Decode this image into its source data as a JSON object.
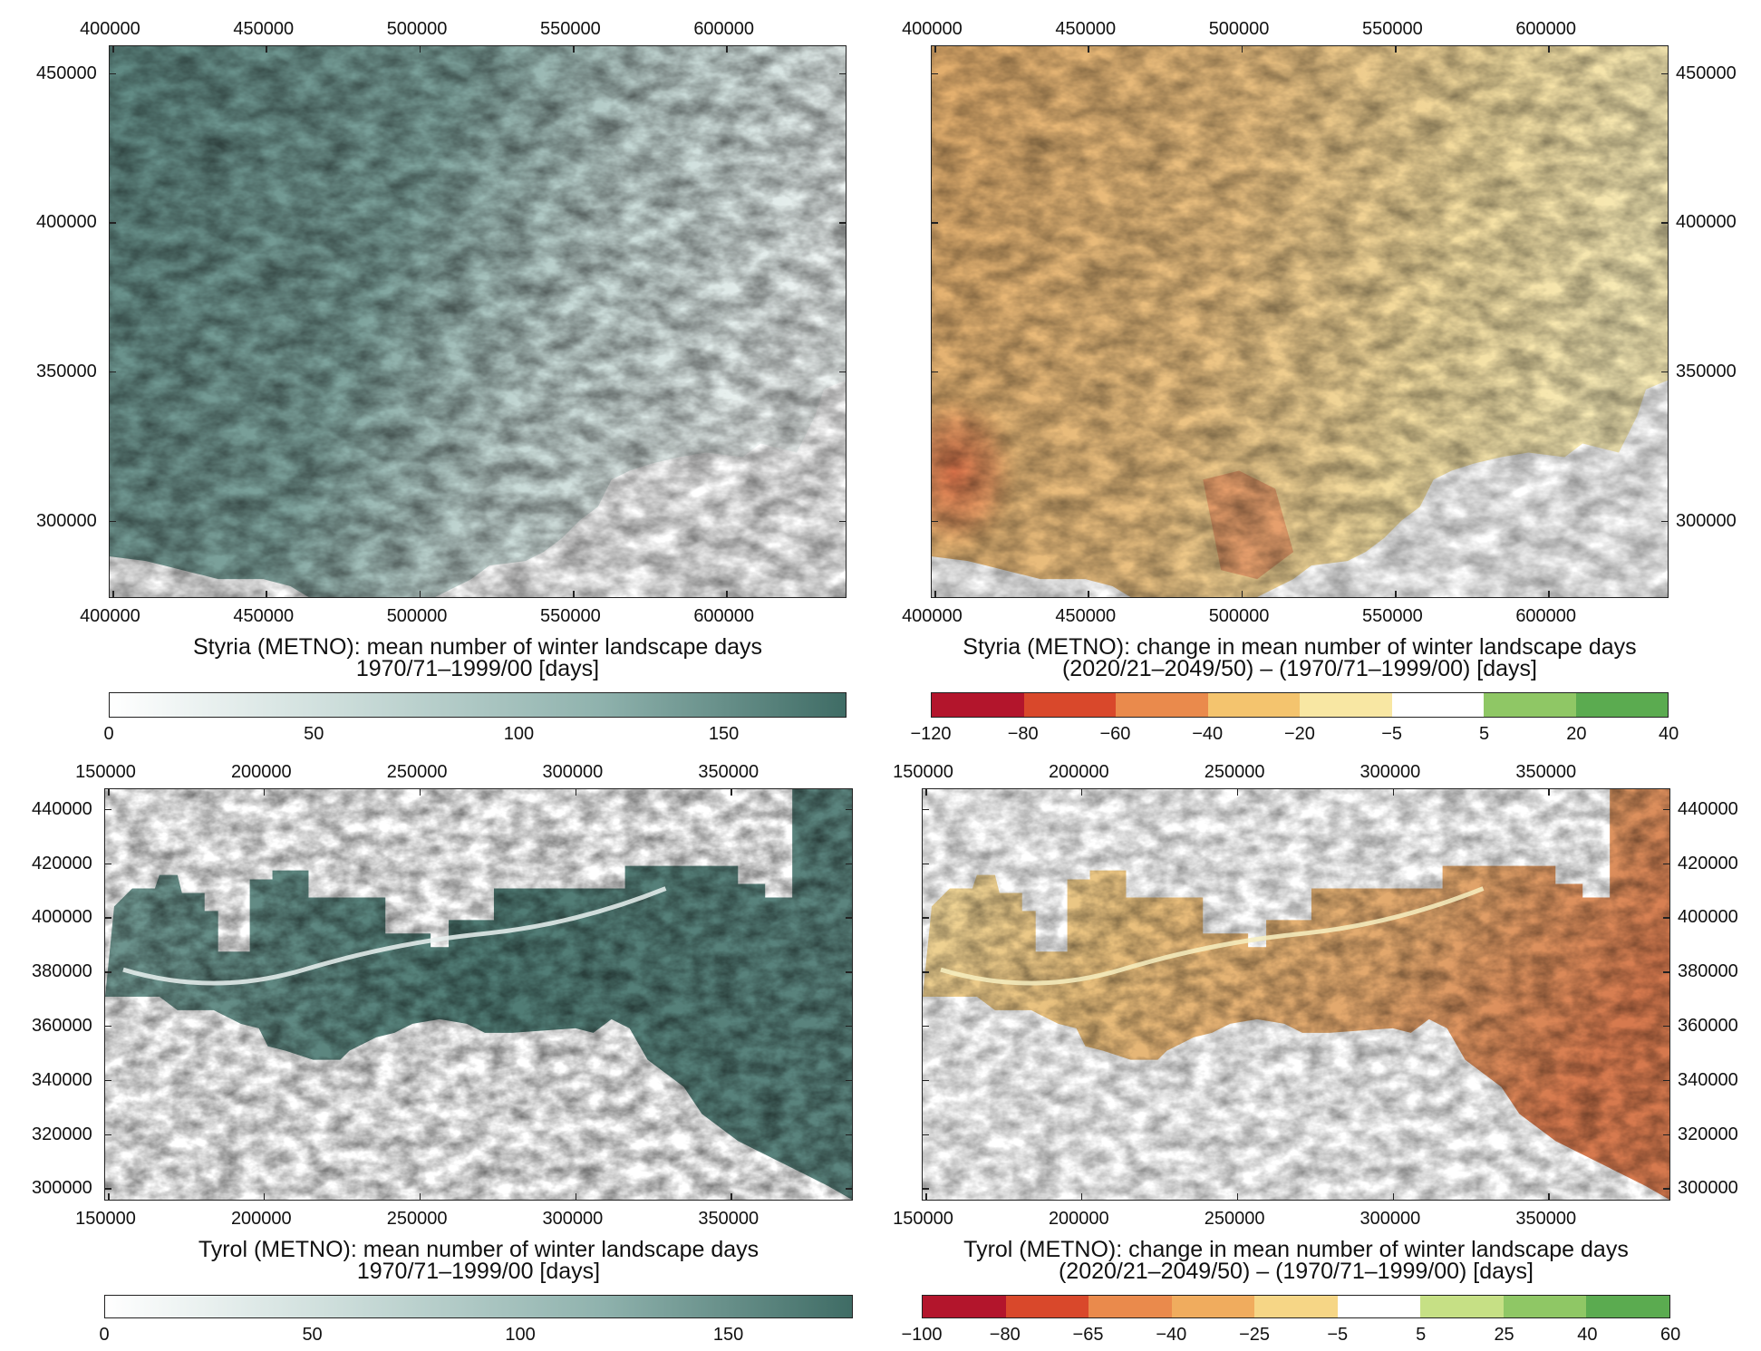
{
  "panels": [
    {
      "id": "styria-mean",
      "caption_line1": "Styria (METNO): mean number of winter landscape days",
      "caption_line2": "1970/71–1999/00 [days]",
      "x_ticks": [
        "400000",
        "450000",
        "500000",
        "550000",
        "600000"
      ],
      "y_ticks": [
        "450000",
        "400000",
        "350000",
        "300000"
      ],
      "y_side": "left",
      "palette": "teal",
      "colorbar": {
        "type": "continuous",
        "labels": [
          "0",
          "50",
          "100",
          "150"
        ],
        "colors": [
          "#ffffff",
          "#c9dbd8",
          "#8fb2ad",
          "#3f6c65"
        ]
      }
    },
    {
      "id": "styria-change",
      "caption_line1": "Styria (METNO): change in mean number of winter landscape days",
      "caption_line2": "(2020/21–2049/50) – (1970/71–1999/00) [days]",
      "x_ticks": [
        "400000",
        "450000",
        "500000",
        "550000",
        "600000"
      ],
      "y_ticks": [
        "450000",
        "400000",
        "350000",
        "300000"
      ],
      "y_side": "right",
      "palette": "diverging",
      "colorbar": {
        "type": "discrete",
        "labels": [
          "−120",
          "−80",
          "−60",
          "−40",
          "−20",
          "−5",
          "5",
          "20",
          "40"
        ],
        "colors": [
          "#b3152c",
          "#d9482b",
          "#ea8a4c",
          "#f4c46e",
          "#f8e7a3",
          "#ffffff",
          "#8fc765",
          "#5bab50"
        ]
      }
    },
    {
      "id": "tyrol-mean",
      "caption_line1": "Tyrol (METNO): mean number of winter landscape days",
      "caption_line2": "1970/71–1999/00 [days]",
      "x_ticks": [
        "150000",
        "200000",
        "250000",
        "300000",
        "350000"
      ],
      "y_ticks": [
        "440000",
        "420000",
        "400000",
        "380000",
        "360000",
        "340000",
        "320000",
        "300000"
      ],
      "y_side": "left",
      "palette": "teal",
      "colorbar": {
        "type": "continuous",
        "labels": [
          "0",
          "50",
          "100",
          "150"
        ],
        "colors": [
          "#ffffff",
          "#c9dbd8",
          "#8fb2ad",
          "#3f6c65"
        ]
      }
    },
    {
      "id": "tyrol-change",
      "caption_line1": "Tyrol (METNO): change in mean number of winter landscape days",
      "caption_line2": "(2020/21–2049/50) – (1970/71–1999/00) [days]",
      "x_ticks": [
        "150000",
        "200000",
        "250000",
        "300000",
        "350000"
      ],
      "y_ticks": [
        "440000",
        "420000",
        "400000",
        "380000",
        "360000",
        "340000",
        "320000",
        "300000"
      ],
      "y_side": "right",
      "palette": "diverging",
      "colorbar": {
        "type": "discrete",
        "labels": [
          "−100",
          "−80",
          "−65",
          "−40",
          "−25",
          "−5",
          "5",
          "25",
          "40",
          "60"
        ],
        "colors": [
          "#b3152c",
          "#d9482b",
          "#ea8a4c",
          "#f0ac5e",
          "#f6d686",
          "#ffffff",
          "#c6e085",
          "#8fc765",
          "#5bab50"
        ]
      }
    }
  ]
}
